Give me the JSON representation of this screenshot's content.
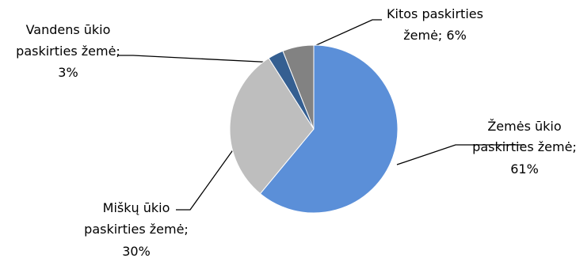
{
  "chart_data": {
    "type": "pie",
    "title": "",
    "start": "top",
    "direction": "clockwise",
    "legend": "none",
    "slices": [
      {
        "label_lines": [
          "Žemės ūkio",
          "paskirties žemė;",
          "61%"
        ],
        "value": 61,
        "color": "#5B8FD8"
      },
      {
        "label_lines": [
          "Miškų ūkio",
          "paskirties žemė;",
          "30%"
        ],
        "value": 30,
        "color": "#BEBEBE"
      },
      {
        "label_lines": [
          "Vandens ūkio",
          "paskirties žemė;",
          "3%"
        ],
        "value": 3,
        "color": "#355F91"
      },
      {
        "label_lines": [
          "Kitos paskirties",
          "žemė; 6%"
        ],
        "value": 6,
        "color": "#828282"
      }
    ]
  }
}
